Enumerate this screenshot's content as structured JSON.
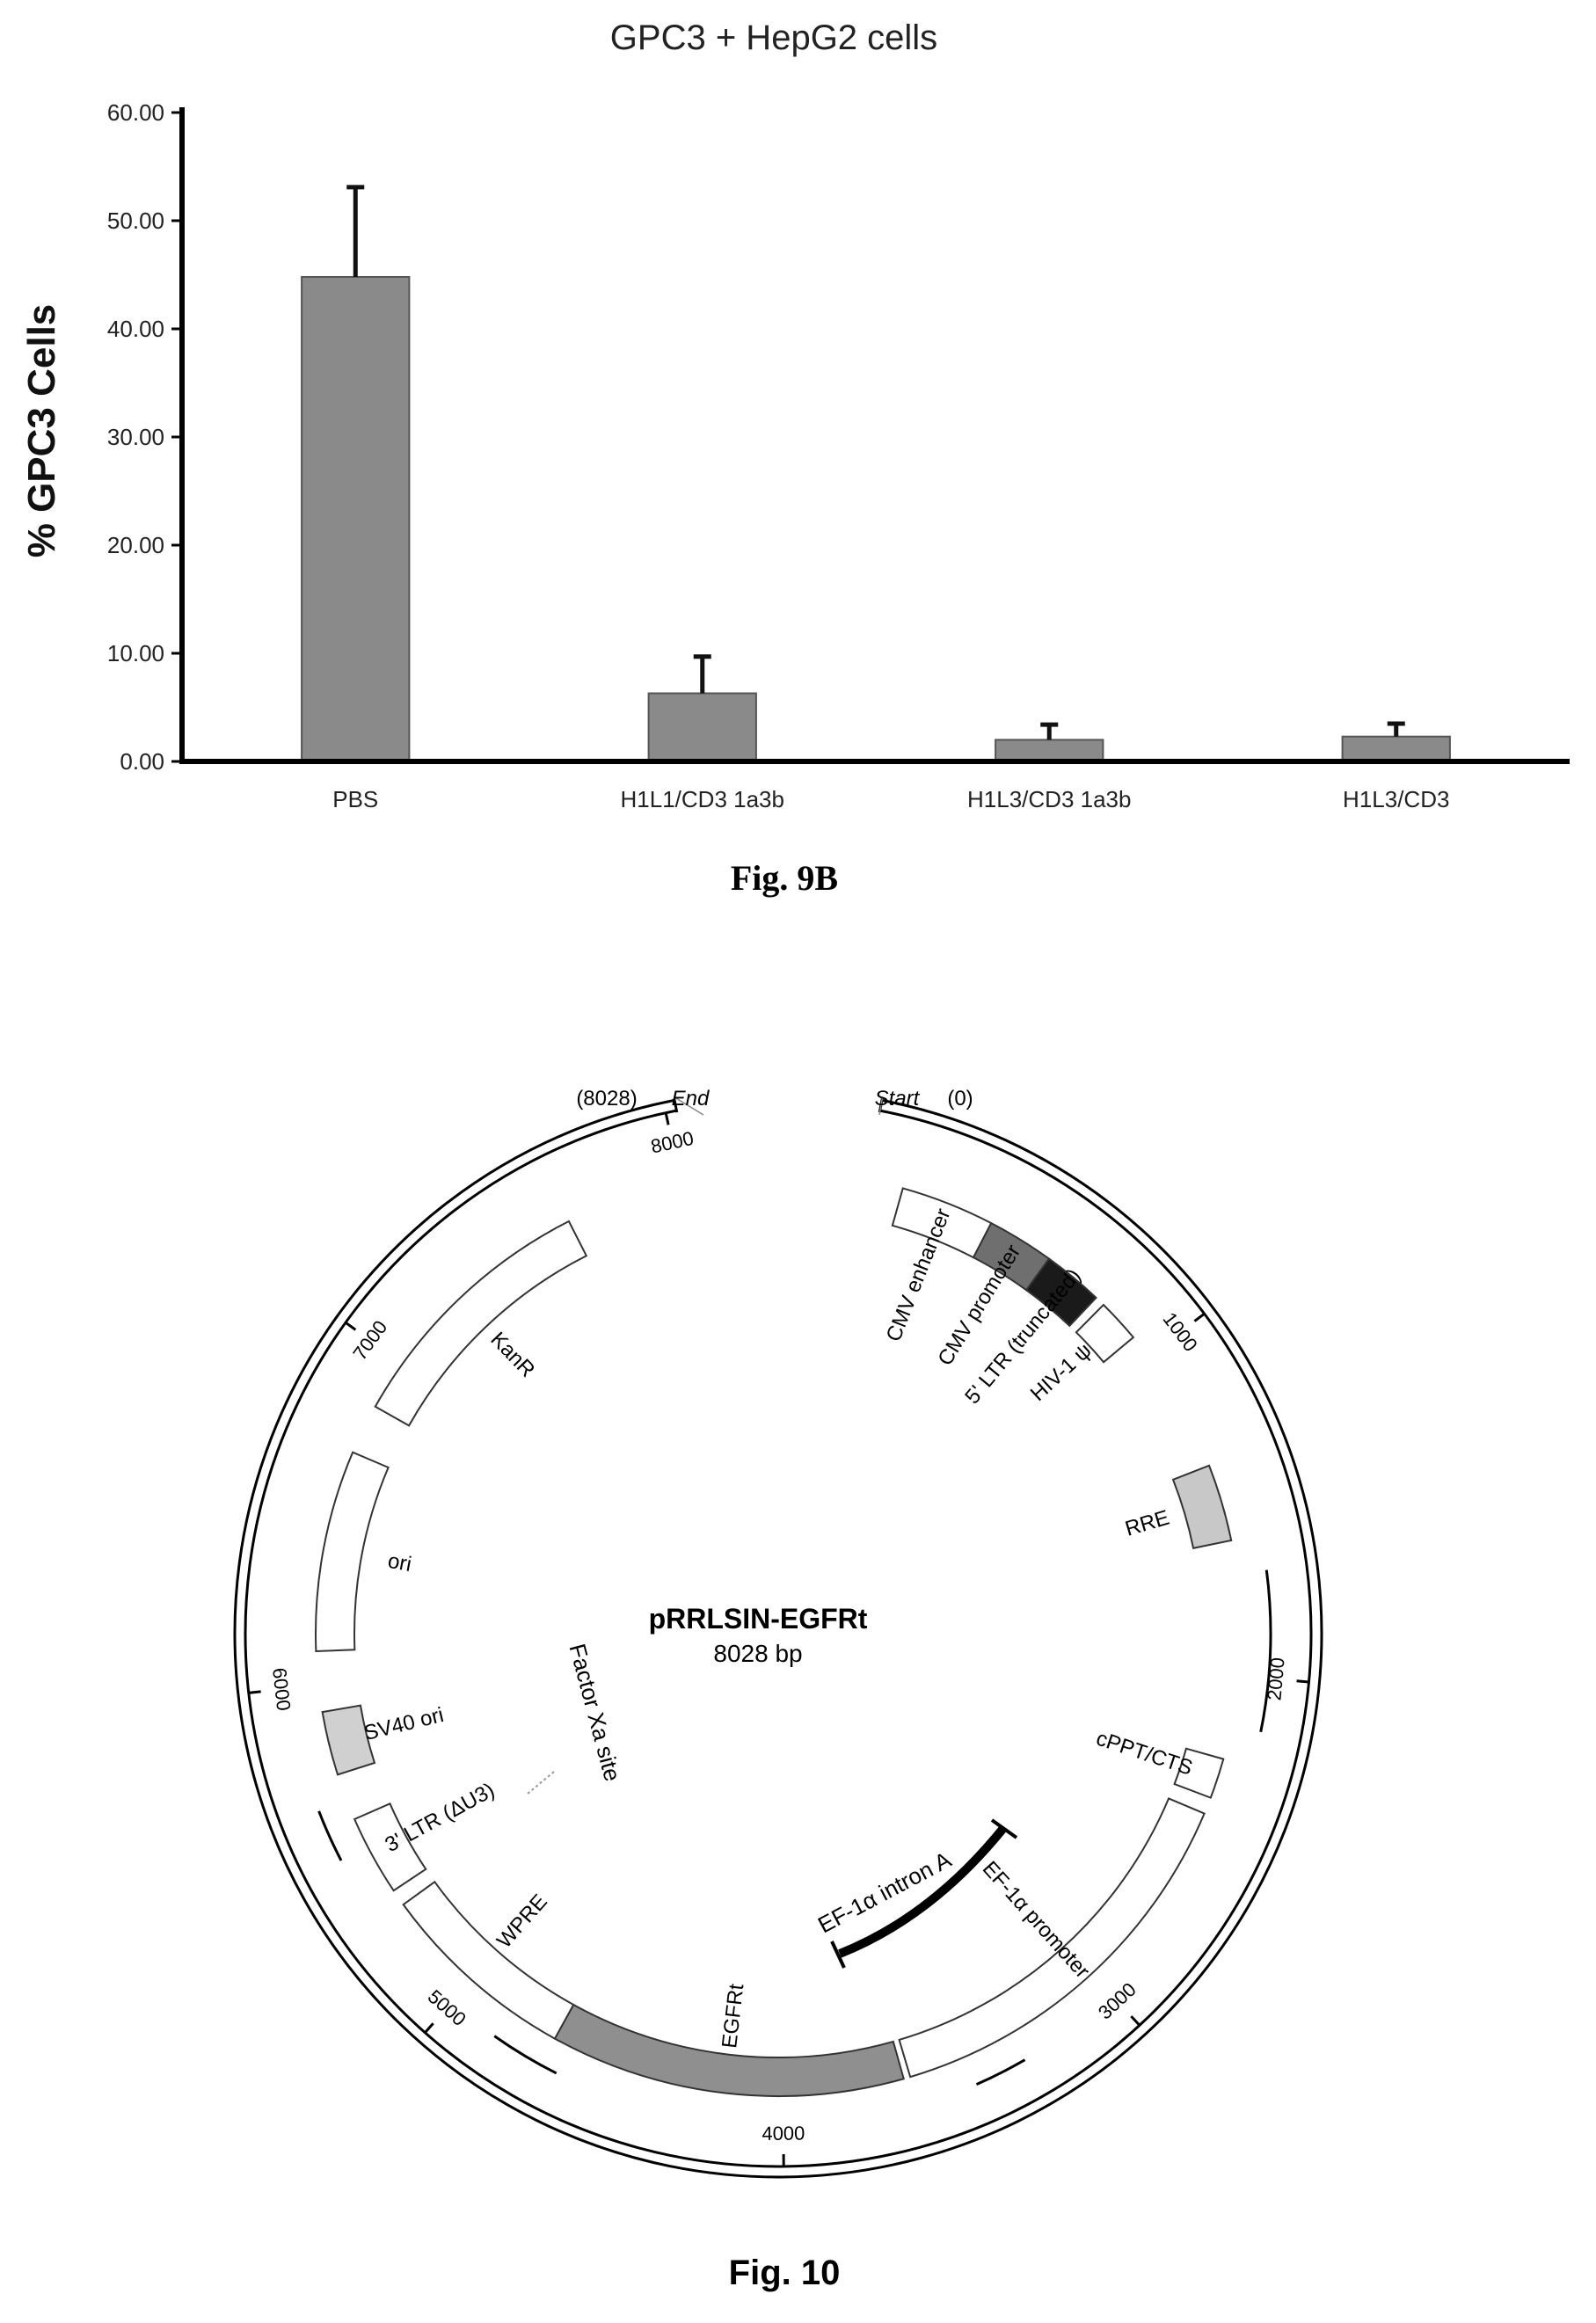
{
  "figure_9b": {
    "caption": "Fig. 9B",
    "chart_data": {
      "type": "bar",
      "title": "GPC3 + HepG2 cells",
      "xlabel": "",
      "ylabel": "% GPC3 Cells",
      "categories": [
        "PBS",
        "H1L1/CD3 1a3b",
        "H1L3/CD3 1a3b",
        "H1L3/CD3"
      ],
      "values": [
        44.8,
        6.3,
        2.0,
        2.3
      ],
      "errors": [
        8.3,
        3.4,
        1.4,
        1.2
      ],
      "ylim": [
        0,
        60
      ],
      "yticks": [
        "0.00",
        "10.00",
        "20.00",
        "30.00",
        "40.00",
        "50.00",
        "60.00"
      ],
      "grid": false,
      "legend": "none",
      "bar_color": "#8a8a8a"
    }
  },
  "figure_10": {
    "caption": "Fig. 10",
    "plasmid_name": "pRRLSIN-EGFRt",
    "plasmid_size": "8028 bp",
    "total_bp": 8028,
    "end_label": "(8028)",
    "end_word": "End",
    "start_word": "Start",
    "start_label": "(0)",
    "ticks": [
      {
        "bp": 1000,
        "label": "1000"
      },
      {
        "bp": 2000,
        "label": "2000"
      },
      {
        "bp": 3000,
        "label": "3000"
      },
      {
        "bp": 4000,
        "label": "4000"
      },
      {
        "bp": 5000,
        "label": "5000"
      },
      {
        "bp": 6000,
        "label": "6000"
      },
      {
        "bp": 7000,
        "label": "7000"
      },
      {
        "bp": 8000,
        "label": "8000"
      }
    ],
    "features": [
      {
        "name": "CMV enhancer",
        "start": 110,
        "end": 390,
        "color": "#ffffff"
      },
      {
        "name": "CMV promoter",
        "start": 390,
        "end": 590,
        "color": "#6f6f6f"
      },
      {
        "name": "5' LTR (truncated)",
        "start": 590,
        "end": 770,
        "color": "#1a1a1a"
      },
      {
        "name": "HIV-1 ψ",
        "start": 800,
        "end": 930,
        "color": "#ffffff"
      },
      {
        "name": "RRE",
        "start": 1370,
        "end": 1600,
        "color": "#c8c8c8"
      },
      {
        "name": "cPPT/CTS",
        "start": 2250,
        "end": 2370,
        "color": "#ffffff"
      },
      {
        "name": "EF-1α promoter",
        "start": 2420,
        "end": 3620,
        "color": "#ffffff"
      },
      {
        "name": "EGFRt",
        "start": 3640,
        "end": 4700,
        "color": "#8f8f8f"
      },
      {
        "name": "WPRE",
        "start": 4700,
        "end": 5300,
        "color": "#ffffff"
      },
      {
        "name": "3' LTR (ΔU3)",
        "start": 5350,
        "end": 5590,
        "color": "#ffffff"
      },
      {
        "name": "SV40 ori",
        "start": 5730,
        "end": 5920,
        "color": "#d0d0d0"
      },
      {
        "name": "ori",
        "start": 6100,
        "end": 6700,
        "color": "#ffffff"
      },
      {
        "name": "KanR",
        "start": 6850,
        "end": 7650,
        "color": "#ffffff"
      }
    ],
    "inner_labels": {
      "factor_xa": "Factor Xa site",
      "ef1a_intron": "EF-1α intron A"
    }
  }
}
